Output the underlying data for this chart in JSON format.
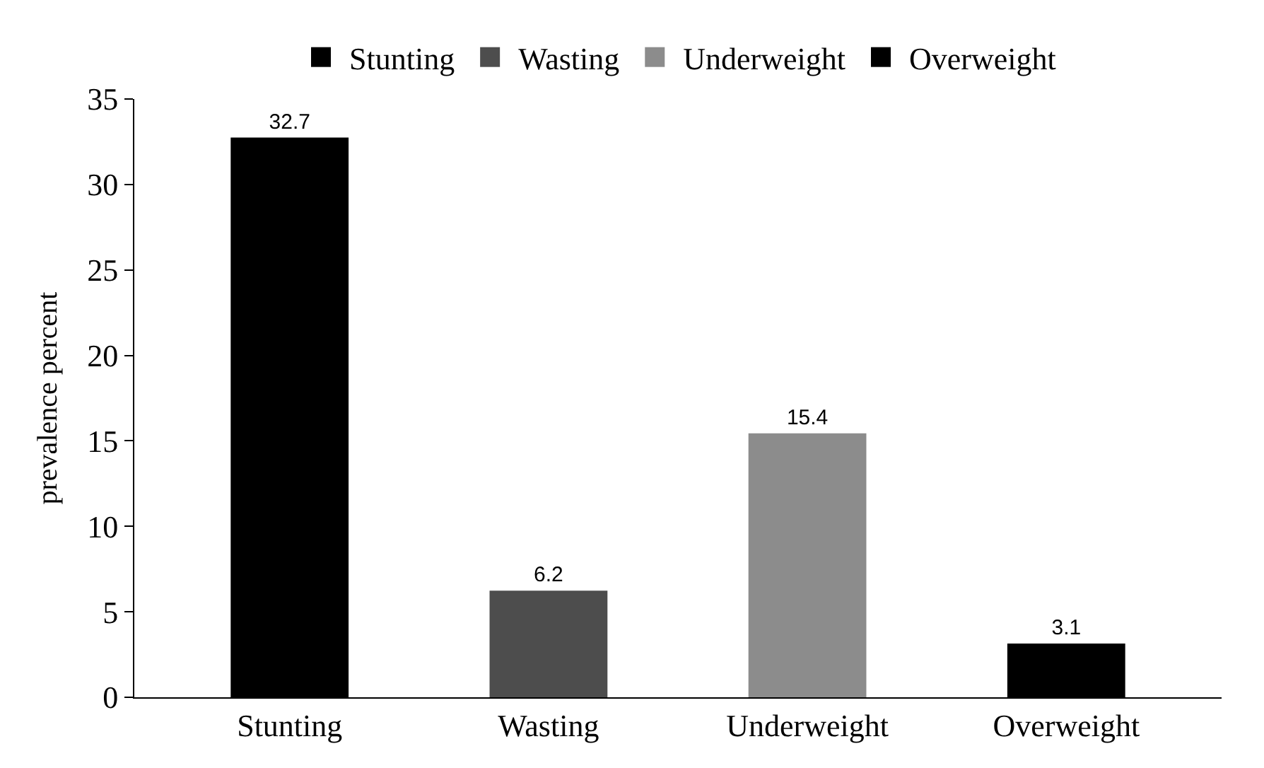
{
  "chart_data": {
    "type": "bar",
    "ylabel": "prevalence percent",
    "categories": [
      "Stunting",
      "Wasting",
      "Underweight",
      "Overweight"
    ],
    "series": [
      {
        "name": "Stunting",
        "color": "#000000",
        "values": [
          32.7,
          null,
          null,
          null
        ]
      },
      {
        "name": "Wasting",
        "color": "#4d4d4d",
        "values": [
          null,
          6.2,
          null,
          null
        ]
      },
      {
        "name": "Underweight",
        "color": "#8c8c8c",
        "values": [
          null,
          null,
          15.4,
          null
        ]
      },
      {
        "name": "Overweight",
        "color": "#000000",
        "values": [
          null,
          null,
          null,
          3.1
        ]
      }
    ],
    "ylim": [
      0,
      35
    ],
    "yticks": [
      0,
      5,
      10,
      15,
      20,
      25,
      30,
      35
    ],
    "data_labels": true,
    "legend": "top"
  }
}
